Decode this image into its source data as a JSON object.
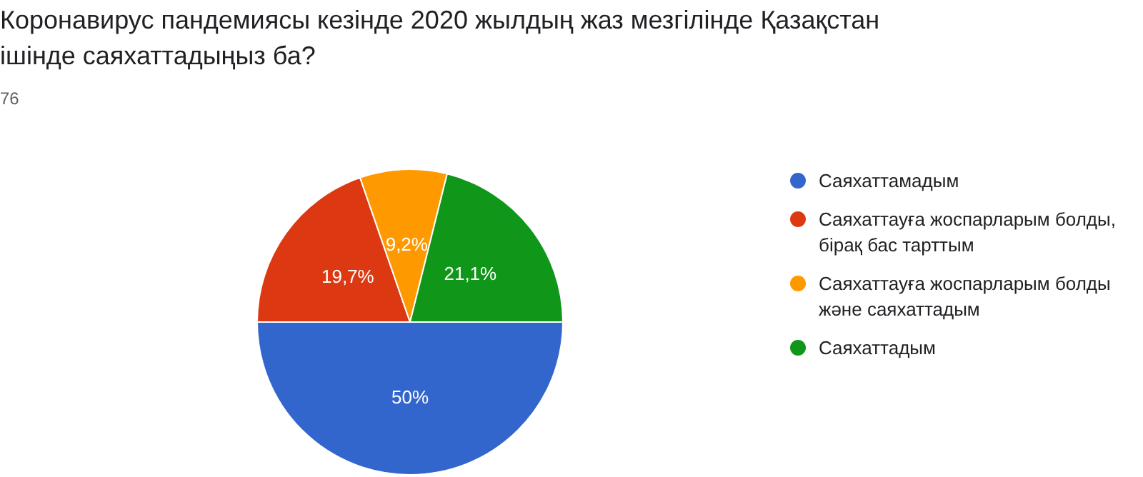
{
  "chart_data": {
    "type": "pie",
    "title": "Коронавирус пандемиясы кезінде 2020 жылдың жаз мезгілінде Қазақстан ішінде саяхаттадыңыз ба?",
    "subtitle": "76",
    "categories": [
      "Саяхаттамадым",
      "Саяхаттауға жоспарларым болды, бірақ бас тарттым",
      "Саяхаттауға жоспарларым болды және саяхаттадым",
      "Саяхаттадым"
    ],
    "values": [
      50,
      19.7,
      9.2,
      21.1
    ],
    "colors": [
      "#3366cc",
      "#dc3912",
      "#ff9900",
      "#109618"
    ],
    "value_labels": [
      "50%",
      "19,7%",
      "9,2%",
      "21,1%"
    ],
    "legend": "right"
  }
}
